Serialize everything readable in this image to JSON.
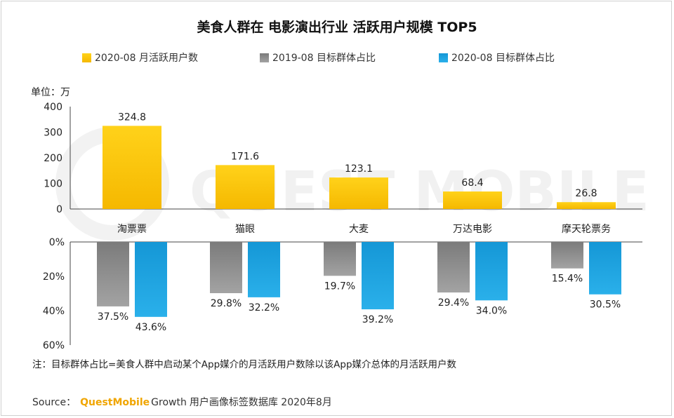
{
  "title": "美食人群在 电影演出行业 活跃用户规模 TOP5",
  "unit_label": "单位：万",
  "legend": [
    {
      "label": "2020-08 月活跃用户数",
      "color": "#f9c20f"
    },
    {
      "label": "2019-08 目标群体占比",
      "color": "#8a8a8a"
    },
    {
      "label": "2020-08 目标群体占比",
      "color": "#1aa3e0"
    }
  ],
  "note": "注：目标群体占比=美食人群中启动某个App媒介的月活跃用户数除以该App媒介总体的月活跃用户数",
  "source": {
    "prefix": "Source：",
    "brand": "QuestMobile",
    "growth": "Growth",
    "rest": "用户画像标签数据库 2020年8月"
  },
  "watermark": "QUEST MOBILE",
  "chart_data": [
    {
      "type": "bar",
      "categories": [
        "淘票票",
        "猫眼",
        "大麦",
        "万达电影",
        "摩天轮票务"
      ],
      "series": [
        {
          "name": "2020-08 月活跃用户数",
          "values": [
            324.8,
            171.6,
            123.1,
            68.4,
            26.8
          ],
          "value_labels": [
            "324.8",
            "171.6",
            "123.1",
            "68.4",
            "26.8"
          ]
        }
      ],
      "ylim": [
        0,
        400
      ],
      "yticks": [
        0,
        100,
        200,
        300,
        400
      ],
      "ytick_labels": [
        "0",
        "100",
        "200",
        "300",
        "400"
      ],
      "ylabel": "单位：万"
    },
    {
      "type": "bar",
      "orientation": "downward",
      "categories": [
        "淘票票",
        "猫眼",
        "大麦",
        "万达电影",
        "摩天轮票务"
      ],
      "series": [
        {
          "name": "2019-08 目标群体占比",
          "values": [
            37.5,
            29.8,
            19.7,
            29.4,
            15.4
          ],
          "value_labels": [
            "37.5%",
            "29.8%",
            "19.7%",
            "29.4%",
            "15.4%"
          ]
        },
        {
          "name": "2020-08 目标群体占比",
          "values": [
            43.6,
            32.2,
            39.2,
            34.0,
            30.5
          ],
          "value_labels": [
            "43.6%",
            "32.2%",
            "39.2%",
            "34.0%",
            "30.5%"
          ]
        }
      ],
      "ylim": [
        0,
        60
      ],
      "yticks": [
        0,
        20,
        40,
        60
      ],
      "ytick_labels": [
        "0%",
        "20%",
        "40%",
        "60%"
      ]
    }
  ]
}
